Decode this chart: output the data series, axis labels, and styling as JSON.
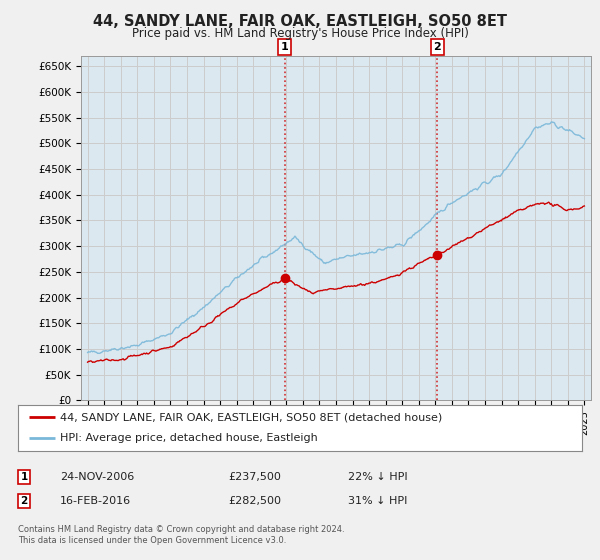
{
  "title": "44, SANDY LANE, FAIR OAK, EASTLEIGH, SO50 8ET",
  "subtitle": "Price paid vs. HM Land Registry's House Price Index (HPI)",
  "ylabel_ticks": [
    "£0",
    "£50K",
    "£100K",
    "£150K",
    "£200K",
    "£250K",
    "£300K",
    "£350K",
    "£400K",
    "£450K",
    "£500K",
    "£550K",
    "£600K",
    "£650K"
  ],
  "ytick_vals": [
    0,
    50000,
    100000,
    150000,
    200000,
    250000,
    300000,
    350000,
    400000,
    450000,
    500000,
    550000,
    600000,
    650000
  ],
  "ylim": [
    0,
    670000
  ],
  "xlim_start": 1994.6,
  "xlim_end": 2025.4,
  "hpi_color": "#7ab8d9",
  "sale_color": "#cc0000",
  "vline_color": "#cc0000",
  "grid_color": "#cccccc",
  "plot_bg": "#dce8f0",
  "fig_bg": "#f0f0f0",
  "legend_label_sale": "44, SANDY LANE, FAIR OAK, EASTLEIGH, SO50 8ET (detached house)",
  "legend_label_hpi": "HPI: Average price, detached house, Eastleigh",
  "sale1_year": 2006.9,
  "sale1_price": 237500,
  "sale1_label": "1",
  "sale1_date": "24-NOV-2006",
  "sale1_pct": "22% ↓ HPI",
  "sale2_year": 2016.12,
  "sale2_price": 282500,
  "sale2_label": "2",
  "sale2_date": "16-FEB-2016",
  "sale2_pct": "31% ↓ HPI",
  "footer": "Contains HM Land Registry data © Crown copyright and database right 2024.\nThis data is licensed under the Open Government Licence v3.0.",
  "xticks": [
    1995,
    1996,
    1997,
    1998,
    1999,
    2000,
    2001,
    2002,
    2003,
    2004,
    2005,
    2006,
    2007,
    2008,
    2009,
    2010,
    2011,
    2012,
    2013,
    2014,
    2015,
    2016,
    2017,
    2018,
    2019,
    2020,
    2021,
    2022,
    2023,
    2024,
    2025
  ]
}
